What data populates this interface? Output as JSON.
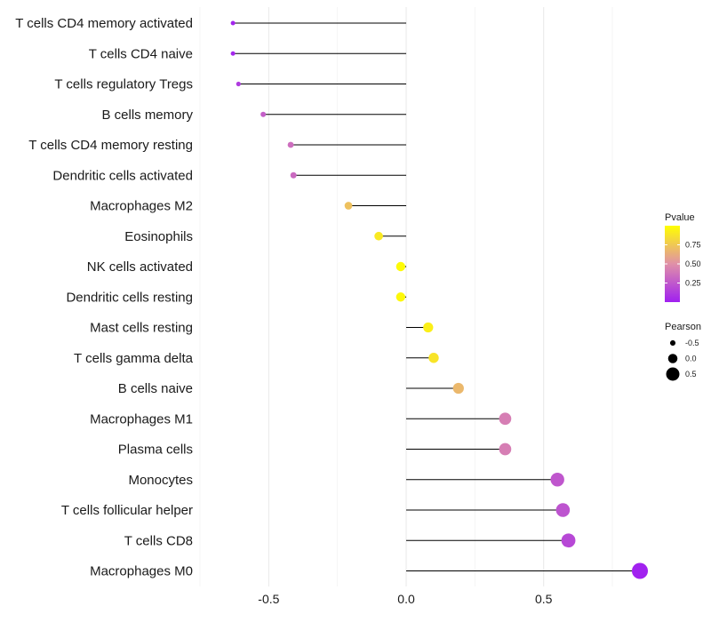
{
  "chart_data": {
    "type": "lollipop",
    "title": "",
    "xlabel": "",
    "ylabel": "",
    "xlim": [
      -0.75,
      0.85
    ],
    "x_ticks": [
      -0.5,
      0.0,
      0.5
    ],
    "x_tick_labels": [
      "-0.5",
      "0.0",
      "0.5"
    ],
    "grid": true,
    "categories": [
      "T cells CD4 memory activated",
      "T cells CD4 naive",
      "T cells regulatory  Tregs",
      "B cells memory",
      "T cells CD4 memory resting",
      "Dendritic cells activated",
      "Macrophages M2",
      "Eosinophils",
      "NK cells activated",
      "Dendritic cells resting",
      "Mast cells resting",
      "T cells gamma delta",
      "B cells naive",
      "Macrophages M1",
      "Plasma cells",
      "Monocytes",
      "T cells follicular helper",
      "T cells CD8",
      "Macrophages M0"
    ],
    "values": [
      -0.63,
      -0.63,
      -0.61,
      -0.52,
      -0.42,
      -0.41,
      -0.21,
      -0.1,
      -0.02,
      -0.02,
      0.08,
      0.1,
      0.19,
      0.36,
      0.36,
      0.55,
      0.57,
      0.59,
      0.85
    ],
    "pvalues": [
      0.02,
      0.03,
      0.12,
      0.28,
      0.35,
      0.33,
      0.72,
      0.9,
      0.98,
      0.97,
      0.93,
      0.88,
      0.68,
      0.42,
      0.42,
      0.24,
      0.23,
      0.18,
      0.01
    ],
    "legend_color": {
      "title": "Pvalue",
      "ticks": [
        0.25,
        0.5,
        0.75
      ],
      "tick_labels": [
        "0.25",
        "0.50",
        "0.75"
      ],
      "range": [
        0.0,
        1.0
      ],
      "low_color": "#a020f0",
      "mid_color": "#e090a8",
      "high_color": "#ffff00"
    },
    "legend_size": {
      "title": "Pearson",
      "entries": [
        {
          "label": "-0.5",
          "value": -0.5
        },
        {
          "label": "0.0",
          "value": 0.0
        },
        {
          "label": "0.5",
          "value": 0.5
        }
      ]
    },
    "legend_position": "right"
  }
}
